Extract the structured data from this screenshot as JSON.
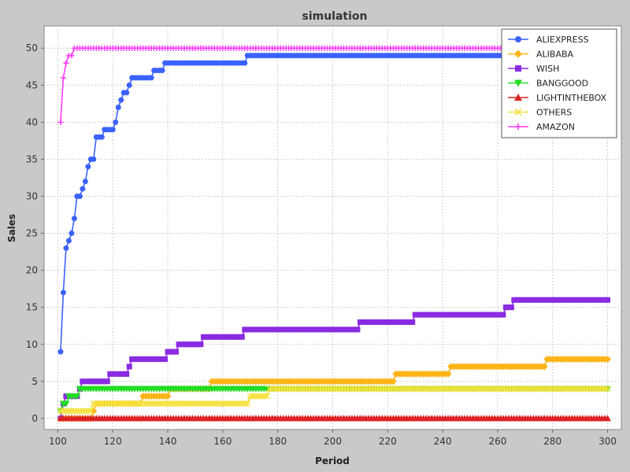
{
  "chart_data": {
    "type": "line",
    "title": "simulation",
    "xlabel": "Period",
    "ylabel": "Sales",
    "xlim": [
      95,
      305
    ],
    "ylim": [
      -1.5,
      53
    ],
    "xticks": [
      100,
      120,
      140,
      160,
      180,
      200,
      220,
      240,
      260,
      280,
      300
    ],
    "yticks": [
      0,
      5,
      10,
      15,
      20,
      25,
      30,
      35,
      40,
      45,
      50
    ],
    "grid": true,
    "legend_position": "top-right",
    "series": [
      {
        "name": "ALIEXPRESS",
        "color": "#3b62ff",
        "marker": "circle",
        "points": [
          [
            101,
            9
          ],
          [
            102,
            17
          ],
          [
            103,
            23
          ],
          [
            104,
            24
          ],
          [
            105,
            25
          ],
          [
            106,
            27
          ],
          [
            107,
            30
          ],
          [
            108,
            30
          ],
          [
            109,
            31
          ],
          [
            110,
            32
          ],
          [
            111,
            34
          ],
          [
            112,
            35
          ],
          [
            113,
            35
          ],
          [
            114,
            38
          ],
          [
            115,
            38
          ],
          [
            116,
            38
          ],
          [
            117,
            39
          ],
          [
            118,
            39
          ],
          [
            119,
            39
          ],
          [
            120,
            39
          ],
          [
            121,
            40
          ],
          [
            122,
            42
          ],
          [
            123,
            43
          ],
          [
            124,
            44
          ],
          [
            125,
            44
          ],
          [
            126,
            45
          ],
          [
            127,
            46
          ],
          [
            128,
            46
          ],
          [
            129,
            46
          ],
          [
            130,
            46
          ],
          [
            131,
            46
          ],
          [
            132,
            46
          ],
          [
            133,
            46
          ],
          [
            134,
            46
          ],
          [
            135,
            47
          ],
          [
            136,
            47
          ],
          [
            137,
            47
          ],
          [
            138,
            47
          ],
          [
            139,
            48
          ],
          [
            140,
            48
          ],
          [
            150,
            48
          ],
          [
            160,
            48
          ],
          [
            168,
            48
          ],
          [
            169,
            49
          ],
          [
            180,
            49
          ],
          [
            200,
            49
          ],
          [
            220,
            49
          ],
          [
            240,
            49
          ],
          [
            260,
            49
          ],
          [
            265,
            49
          ],
          [
            266,
            50
          ],
          [
            280,
            50
          ],
          [
            300,
            50
          ]
        ]
      },
      {
        "name": "ALIBABA",
        "color": "#ffb417",
        "marker": "diamond",
        "points": [
          [
            101,
            0
          ],
          [
            110,
            0
          ],
          [
            112,
            0
          ],
          [
            113,
            1
          ],
          [
            114,
            2
          ],
          [
            120,
            2
          ],
          [
            130,
            2
          ],
          [
            131,
            3
          ],
          [
            140,
            3
          ],
          [
            141,
            4
          ],
          [
            150,
            4
          ],
          [
            155,
            4
          ],
          [
            156,
            5
          ],
          [
            170,
            5
          ],
          [
            190,
            5
          ],
          [
            210,
            5
          ],
          [
            222,
            5
          ],
          [
            223,
            6
          ],
          [
            235,
            6
          ],
          [
            242,
            6
          ],
          [
            243,
            7
          ],
          [
            260,
            7
          ],
          [
            277,
            7
          ],
          [
            278,
            8
          ],
          [
            290,
            8
          ],
          [
            300,
            8
          ]
        ]
      },
      {
        "name": "WISH",
        "color": "#8a2be2",
        "marker": "square",
        "points": [
          [
            101,
            0
          ],
          [
            102,
            2
          ],
          [
            103,
            3
          ],
          [
            104,
            3
          ],
          [
            106,
            3
          ],
          [
            107,
            3
          ],
          [
            108,
            4
          ],
          [
            109,
            5
          ],
          [
            115,
            5
          ],
          [
            118,
            5
          ],
          [
            119,
            6
          ],
          [
            125,
            6
          ],
          [
            126,
            7
          ],
          [
            127,
            8
          ],
          [
            135,
            8
          ],
          [
            139,
            8
          ],
          [
            140,
            9
          ],
          [
            143,
            9
          ],
          [
            144,
            10
          ],
          [
            150,
            10
          ],
          [
            152,
            10
          ],
          [
            153,
            11
          ],
          [
            160,
            11
          ],
          [
            167,
            11
          ],
          [
            168,
            12
          ],
          [
            180,
            12
          ],
          [
            200,
            12
          ],
          [
            209,
            12
          ],
          [
            210,
            13
          ],
          [
            220,
            13
          ],
          [
            229,
            13
          ],
          [
            230,
            14
          ],
          [
            250,
            14
          ],
          [
            262,
            14
          ],
          [
            263,
            15
          ],
          [
            265,
            15
          ],
          [
            266,
            16
          ],
          [
            280,
            16
          ],
          [
            300,
            16
          ]
        ]
      },
      {
        "name": "BANGGOOD",
        "color": "#22dd22",
        "marker": "triangle-down",
        "points": [
          [
            101,
            1
          ],
          [
            102,
            2
          ],
          [
            103,
            2
          ],
          [
            104,
            3
          ],
          [
            108,
            4
          ],
          [
            120,
            4
          ],
          [
            140,
            4
          ],
          [
            160,
            4
          ],
          [
            180,
            4
          ],
          [
            200,
            4
          ],
          [
            220,
            4
          ],
          [
            240,
            4
          ],
          [
            260,
            4
          ],
          [
            280,
            4
          ],
          [
            300,
            4
          ]
        ]
      },
      {
        "name": "LIGHTINTHEBOX",
        "color": "#dd2222",
        "marker": "triangle-up",
        "points": [
          [
            101,
            0
          ],
          [
            120,
            0
          ],
          [
            140,
            0
          ],
          [
            160,
            0
          ],
          [
            180,
            0
          ],
          [
            200,
            0
          ],
          [
            220,
            0
          ],
          [
            240,
            0
          ],
          [
            260,
            0
          ],
          [
            280,
            0
          ],
          [
            300,
            0
          ]
        ]
      },
      {
        "name": "OTHERS",
        "color": "#f5e13c",
        "marker": "x",
        "points": [
          [
            101,
            1
          ],
          [
            112,
            1
          ],
          [
            113,
            2
          ],
          [
            130,
            2
          ],
          [
            131,
            2
          ],
          [
            150,
            2
          ],
          [
            169,
            2
          ],
          [
            170,
            3
          ],
          [
            176,
            3
          ],
          [
            177,
            4
          ],
          [
            200,
            4
          ],
          [
            240,
            4
          ],
          [
            280,
            4
          ],
          [
            300,
            4
          ]
        ]
      },
      {
        "name": "AMAZON",
        "color": "#ff3cff",
        "marker": "plus",
        "points": [
          [
            101,
            40
          ],
          [
            102,
            46
          ],
          [
            103,
            48
          ],
          [
            104,
            49
          ],
          [
            105,
            49
          ],
          [
            106,
            50
          ],
          [
            120,
            50
          ],
          [
            150,
            50
          ],
          [
            200,
            50
          ],
          [
            250,
            50
          ],
          [
            300,
            50
          ]
        ]
      }
    ]
  }
}
